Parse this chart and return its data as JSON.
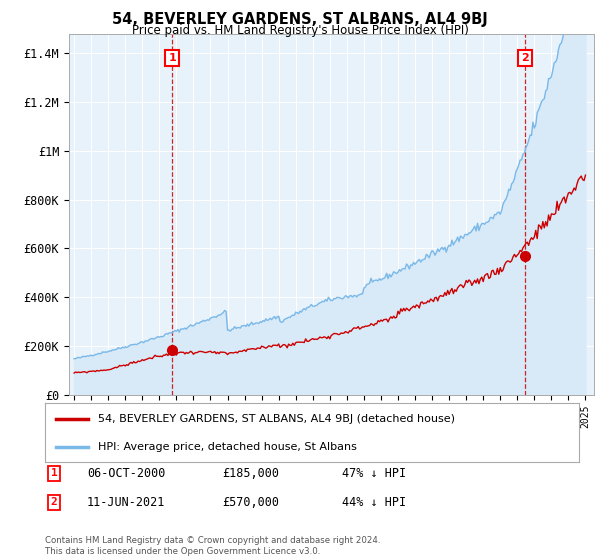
{
  "title": "54, BEVERLEY GARDENS, ST ALBANS, AL4 9BJ",
  "subtitle": "Price paid vs. HM Land Registry's House Price Index (HPI)",
  "x_start_year": 1995,
  "x_end_year": 2025,
  "y_ticks": [
    0,
    200000,
    400000,
    600000,
    800000,
    1000000,
    1200000,
    1400000
  ],
  "y_tick_labels": [
    "£0",
    "£200K",
    "£400K",
    "£600K",
    "£800K",
    "£1M",
    "£1.2M",
    "£1.4M"
  ],
  "hpi_color": "#7ab8e8",
  "hpi_fill_color": "#d8eaf8",
  "price_color": "#cc0000",
  "background_color": "#ffffff",
  "plot_bg_color": "#e8f2fb",
  "grid_color": "#cccccc",
  "marker1_t": 5.75,
  "marker1_price": 185000,
  "marker1_label": "06-OCT-2000",
  "marker1_amount": "£185,000",
  "marker1_pct": "47% ↓ HPI",
  "marker2_t": 26.45,
  "marker2_price": 570000,
  "marker2_label": "11-JUN-2021",
  "marker2_amount": "£570,000",
  "marker2_pct": "44% ↓ HPI",
  "legend_label1": "54, BEVERLEY GARDENS, ST ALBANS, AL4 9BJ (detached house)",
  "legend_label2": "HPI: Average price, detached house, St Albans",
  "footer": "Contains HM Land Registry data © Crown copyright and database right 2024.\nThis data is licensed under the Open Government Licence v3.0."
}
